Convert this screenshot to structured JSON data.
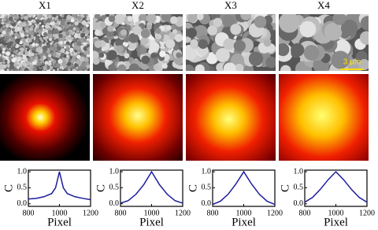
{
  "chart_data": [
    {
      "type": "line",
      "title": "X1",
      "xlabel": "Pixel",
      "ylabel": "C",
      "color": "#1c1c9c",
      "x": [
        800,
        850,
        900,
        950,
        975,
        1000,
        1025,
        1050,
        1100,
        1150,
        1200
      ],
      "values": [
        0.15,
        0.17,
        0.22,
        0.32,
        0.5,
        1.0,
        0.5,
        0.32,
        0.22,
        0.17,
        0.13
      ],
      "xlim": [
        800,
        1200
      ],
      "xticks": [
        800,
        1000,
        1200
      ],
      "ylim": [
        -0.08,
        1.05
      ],
      "yticks": [
        {
          "value": 0,
          "label": "0.0"
        },
        {
          "value": 0.5,
          "label": "0.5"
        },
        {
          "value": 1,
          "label": "1.0"
        }
      ]
    },
    {
      "type": "line",
      "title": "X2",
      "xlabel": "Pixel",
      "ylabel": "C",
      "color": "#1c1c9c",
      "x": [
        800,
        850,
        900,
        950,
        1000,
        1050,
        1100,
        1150,
        1200
      ],
      "values": [
        0.02,
        0.1,
        0.3,
        0.6,
        1.0,
        0.6,
        0.3,
        0.1,
        0.02
      ],
      "xlim": [
        800,
        1200
      ],
      "xticks": [
        800,
        1000,
        1200
      ],
      "ylim": [
        -0.08,
        1.05
      ],
      "yticks": [
        {
          "value": 0,
          "label": "0.0"
        },
        {
          "value": 0.5,
          "label": "0.5"
        },
        {
          "value": 1,
          "label": "1.0"
        }
      ]
    },
    {
      "type": "line",
      "title": "X3",
      "xlabel": "Pixel",
      "ylabel": "C",
      "color": "#1c1c9c",
      "x": [
        800,
        850,
        900,
        950,
        1000,
        1050,
        1100,
        1150,
        1200
      ],
      "values": [
        -0.02,
        0.08,
        0.3,
        0.62,
        1.0,
        0.62,
        0.3,
        0.08,
        -0.02
      ],
      "xlim": [
        800,
        1200
      ],
      "xticks": [
        800,
        1000,
        1200
      ],
      "ylim": [
        -0.08,
        1.05
      ],
      "yticks": [
        {
          "value": 0,
          "label": "0.0"
        },
        {
          "value": 0.5,
          "label": "0.5"
        },
        {
          "value": 1,
          "label": "1.0"
        }
      ]
    },
    {
      "type": "line",
      "title": "X4",
      "xlabel": "Pixel",
      "ylabel": "C",
      "color": "#1c1c9c",
      "x": [
        800,
        850,
        900,
        950,
        1000,
        1050,
        1100,
        1150,
        1200
      ],
      "values": [
        0.05,
        0.2,
        0.45,
        0.75,
        1.0,
        0.75,
        0.45,
        0.2,
        0.05
      ],
      "xlim": [
        800,
        1200
      ],
      "xticks": [
        800,
        1000,
        1200
      ],
      "ylim": [
        -0.08,
        1.05
      ],
      "yticks": [
        {
          "value": 0,
          "label": "0.0"
        },
        {
          "value": 0.5,
          "label": "0.5"
        },
        {
          "value": 1,
          "label": "1.0"
        }
      ]
    }
  ],
  "images": {
    "scale_bar_label": "3 μm"
  }
}
